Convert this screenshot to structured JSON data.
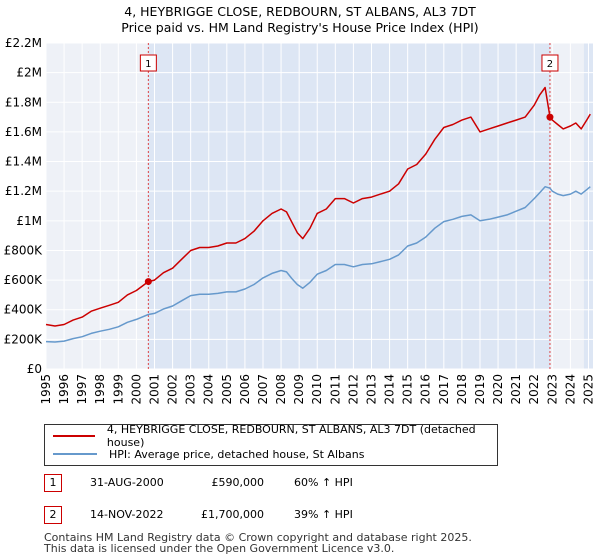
{
  "title_line1": "4, HEYBRIGGE CLOSE, REDBOURN, ST ALBANS, AL3 7DT",
  "title_line2": "Price paid vs. HM Land Registry's House Price Index (HPI)",
  "colors": {
    "property": "#cc0000",
    "hpi": "#6699cc",
    "shade": "#dde6f4",
    "grid": "#ffffff",
    "vline": "#dd4444"
  },
  "chart_data": {
    "type": "line",
    "xlim": [
      1995,
      2025.25
    ],
    "ylim": [
      0,
      2200000
    ],
    "y_ticks": [
      0,
      200000,
      400000,
      600000,
      800000,
      1000000,
      1200000,
      1400000,
      1600000,
      1800000,
      2000000,
      2200000
    ],
    "y_tick_labels": [
      "£0",
      "£200K",
      "£400K",
      "£600K",
      "£800K",
      "£1M",
      "£1.2M",
      "£1.4M",
      "£1.6M",
      "£1.8M",
      "£2M",
      "£2.2M"
    ],
    "x_ticks": [
      1995,
      1996,
      1997,
      1998,
      1999,
      2000,
      2001,
      2002,
      2003,
      2004,
      2005,
      2006,
      2007,
      2008,
      2009,
      2010,
      2011,
      2012,
      2013,
      2014,
      2015,
      2016,
      2017,
      2018,
      2019,
      2020,
      2021,
      2022,
      2023,
      2024,
      2025
    ],
    "x_tick_labels": [
      "1995",
      "1996",
      "1997",
      "1998",
      "1999",
      "2000",
      "2001",
      "2002",
      "2003",
      "2004",
      "2005",
      "2006",
      "2007",
      "2008",
      "2009",
      "2010",
      "2011",
      "2012",
      "2013",
      "2014",
      "2015",
      "2016",
      "2017",
      "2018",
      "2019",
      "2020",
      "2021",
      "2022",
      "2023",
      "2024",
      "2025"
    ],
    "shaded_ranges": [
      [
        2000.66,
        2022.87
      ],
      [
        2024.75,
        2025.25
      ]
    ],
    "series": [
      {
        "name": "4, HEYBRIGGE CLOSE, REDBOURN, ST ALBANS, AL3 7DT (detached house)",
        "x": [
          1995.0,
          1995.5,
          1996.0,
          1996.5,
          1997.0,
          1997.5,
          1998.0,
          1998.5,
          1999.0,
          1999.5,
          2000.0,
          2000.66,
          2001.0,
          2001.5,
          2002.0,
          2002.5,
          2003.0,
          2003.5,
          2004.0,
          2004.5,
          2005.0,
          2005.5,
          2006.0,
          2006.5,
          2007.0,
          2007.5,
          2008.0,
          2008.3,
          2008.6,
          2008.9,
          2009.2,
          2009.6,
          2010.0,
          2010.5,
          2011.0,
          2011.5,
          2012.0,
          2012.5,
          2013.0,
          2013.5,
          2014.0,
          2014.5,
          2015.0,
          2015.5,
          2016.0,
          2016.5,
          2017.0,
          2017.5,
          2018.0,
          2018.5,
          2019.0,
          2019.5,
          2020.0,
          2020.5,
          2021.0,
          2021.5,
          2022.0,
          2022.3,
          2022.6,
          2022.87,
          2023.0,
          2023.3,
          2023.6,
          2024.0,
          2024.3,
          2024.6,
          2024.9,
          2025.1
        ],
        "values": [
          300000,
          290000,
          300000,
          330000,
          350000,
          390000,
          410000,
          430000,
          450000,
          500000,
          530000,
          590000,
          600000,
          650000,
          680000,
          740000,
          800000,
          820000,
          820000,
          830000,
          850000,
          850000,
          880000,
          930000,
          1000000,
          1050000,
          1080000,
          1060000,
          990000,
          920000,
          880000,
          950000,
          1050000,
          1080000,
          1150000,
          1150000,
          1120000,
          1150000,
          1160000,
          1180000,
          1200000,
          1250000,
          1350000,
          1380000,
          1450000,
          1550000,
          1630000,
          1650000,
          1680000,
          1700000,
          1600000,
          1620000,
          1640000,
          1660000,
          1680000,
          1700000,
          1780000,
          1850000,
          1900000,
          1700000,
          1680000,
          1650000,
          1620000,
          1640000,
          1660000,
          1620000,
          1680000,
          1720000
        ]
      },
      {
        "name": "HPI: Average price, detached house, St Albans",
        "x": [
          1995.0,
          1995.5,
          1996.0,
          1996.5,
          1997.0,
          1997.5,
          1998.0,
          1998.5,
          1999.0,
          1999.5,
          2000.0,
          2000.66,
          2001.0,
          2001.5,
          2002.0,
          2002.5,
          2003.0,
          2003.5,
          2004.0,
          2004.5,
          2005.0,
          2005.5,
          2006.0,
          2006.5,
          2007.0,
          2007.5,
          2008.0,
          2008.3,
          2008.6,
          2008.9,
          2009.2,
          2009.6,
          2010.0,
          2010.5,
          2011.0,
          2011.5,
          2012.0,
          2012.5,
          2013.0,
          2013.5,
          2014.0,
          2014.5,
          2015.0,
          2015.5,
          2016.0,
          2016.5,
          2017.0,
          2017.5,
          2018.0,
          2018.5,
          2019.0,
          2019.5,
          2020.0,
          2020.5,
          2021.0,
          2021.5,
          2022.0,
          2022.3,
          2022.6,
          2022.87,
          2023.0,
          2023.3,
          2023.6,
          2024.0,
          2024.3,
          2024.6,
          2024.9,
          2025.1
        ],
        "values": [
          185000,
          182000,
          188000,
          205000,
          218000,
          240000,
          255000,
          268000,
          285000,
          315000,
          335000,
          368000,
          375000,
          405000,
          425000,
          460000,
          495000,
          505000,
          505000,
          510000,
          520000,
          520000,
          540000,
          570000,
          615000,
          645000,
          665000,
          655000,
          610000,
          570000,
          545000,
          585000,
          640000,
          665000,
          705000,
          705000,
          690000,
          705000,
          710000,
          725000,
          740000,
          770000,
          830000,
          850000,
          890000,
          950000,
          995000,
          1010000,
          1030000,
          1040000,
          1000000,
          1010000,
          1025000,
          1040000,
          1065000,
          1090000,
          1150000,
          1190000,
          1230000,
          1220000,
          1200000,
          1180000,
          1170000,
          1180000,
          1200000,
          1180000,
          1210000,
          1230000
        ]
      }
    ],
    "markers": [
      {
        "label": "1",
        "x": 2000.66,
        "value": 590000
      },
      {
        "label": "2",
        "x": 2022.87,
        "value": 1700000
      }
    ]
  },
  "legend": {
    "items": [
      {
        "label": "4, HEYBRIGGE CLOSE, REDBOURN, ST ALBANS, AL3 7DT (detached house)"
      },
      {
        "label": "HPI: Average price, detached house, St Albans"
      }
    ]
  },
  "transactions": [
    {
      "num": "1",
      "date": "31-AUG-2000",
      "price": "£590,000",
      "hpi": "60% ↑ HPI"
    },
    {
      "num": "2",
      "date": "14-NOV-2022",
      "price": "£1,700,000",
      "hpi": "39% ↑ HPI"
    }
  ],
  "footer": {
    "line1": "Contains HM Land Registry data © Crown copyright and database right 2025.",
    "line2": "This data is licensed under the Open Government Licence v3.0."
  }
}
